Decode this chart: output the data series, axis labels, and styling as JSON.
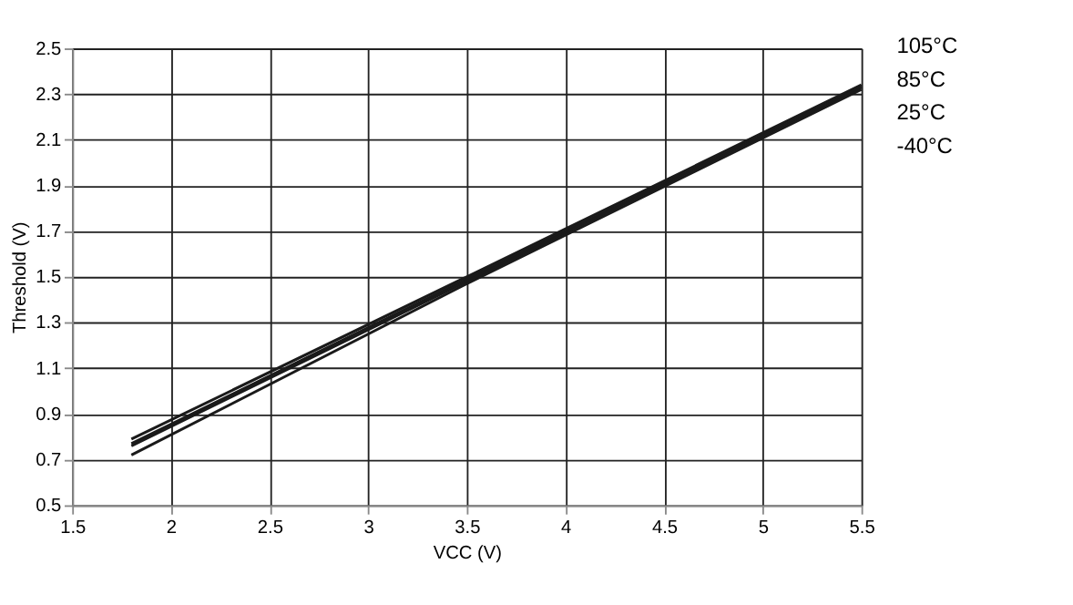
{
  "chart_data": {
    "type": "line",
    "xlabel": "VCC (V)",
    "ylabel": "Threshold (V)",
    "x": [
      1.8,
      3.5,
      5.5
    ],
    "series": [
      {
        "name": "105°C",
        "color": "#1a1a1a",
        "values": [
          0.79,
          1.5,
          2.34
        ]
      },
      {
        "name": "85°C",
        "color": "#1a1a1a",
        "values": [
          0.77,
          1.49,
          2.33
        ]
      },
      {
        "name": "25°C",
        "color": "#1a1a1a",
        "values": [
          0.76,
          1.48,
          2.33
        ]
      },
      {
        "name": "-40°C",
        "color": "#1a1a1a",
        "values": [
          0.72,
          1.47,
          2.32
        ]
      }
    ],
    "xlim": [
      1.5,
      5.5
    ],
    "xticks": [
      1.5,
      2,
      2.5,
      3,
      3.5,
      4,
      4.5,
      5,
      5.5
    ],
    "ylim": [
      0.5,
      2.5
    ],
    "yticks": [
      0.5,
      0.7,
      0.9,
      1.1,
      1.3,
      1.5,
      1.7,
      1.9,
      2.1,
      2.3,
      2.5
    ],
    "grid": true,
    "legend": "top right",
    "marker": "none",
    "line_style": "solid"
  }
}
